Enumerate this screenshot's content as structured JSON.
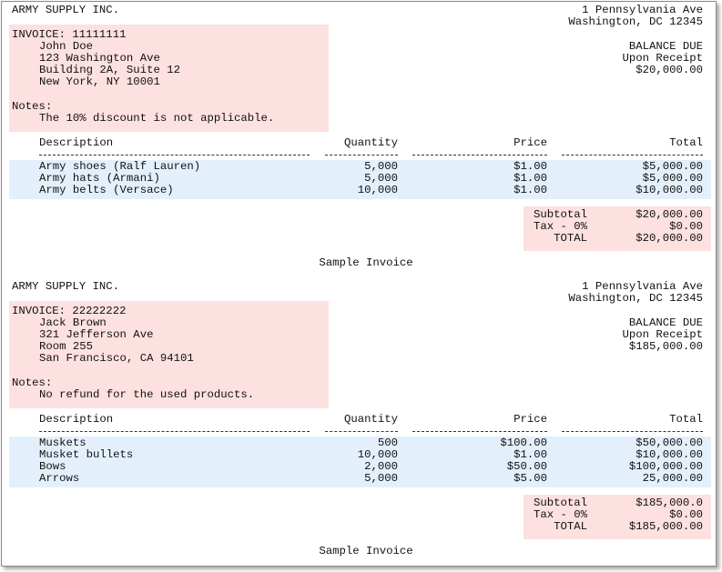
{
  "invoices": [
    {
      "company": "ARMY SUPPLY INC.",
      "address": [
        "1 Pennsylvania Ave",
        "Washington, DC 12345"
      ],
      "invoice_label": "INVOICE: 11111111",
      "customer": [
        "John Doe",
        "123 Washington Ave",
        "Building 2A, Suite 12",
        "New York, NY 10001"
      ],
      "notes_label": "Notes:",
      "note": "The 10% discount is not applicable.",
      "balance": [
        "BALANCE DUE",
        "Upon Receipt",
        "$20,000.00"
      ],
      "columns": [
        "Description",
        "Quantity",
        "Price",
        "Total"
      ],
      "items": [
        [
          "Army shoes (Ralf Lauren)",
          "5,000",
          "$1.00",
          "$5,000.00"
        ],
        [
          "Army hats (Armani)",
          "5,000",
          "$1.00",
          "$5,000.00"
        ],
        [
          "Army belts (Versace)",
          "10,000",
          "$1.00",
          "$10,000.00"
        ]
      ],
      "totals": [
        [
          "Subtotal",
          "$20,000.00"
        ],
        [
          "Tax - 0%",
          "$0.00"
        ],
        [
          "TOTAL",
          "$20,000.00"
        ]
      ],
      "footer": "Sample Invoice"
    },
    {
      "company": "ARMY SUPPLY INC.",
      "address": [
        "1 Pennsylvania Ave",
        "Washington, DC 12345"
      ],
      "invoice_label": "INVOICE: 22222222",
      "customer": [
        "Jack Brown",
        "321 Jefferson Ave",
        "Room 255",
        "San Francisco, CA 94101"
      ],
      "notes_label": "Notes:",
      "note": "No refund for the used products.",
      "balance": [
        "BALANCE DUE",
        "Upon Receipt",
        "$185,000.00"
      ],
      "columns": [
        "Description",
        "Quantity",
        "Price",
        "Total"
      ],
      "items": [
        [
          "Muskets",
          "500",
          "$100.00",
          "$50,000.00"
        ],
        [
          "Musket bullets",
          "10,000",
          "$1.00",
          "$10,000.00"
        ],
        [
          "Bows",
          "2,000",
          "$50.00",
          "$100,000.00"
        ],
        [
          "Arrows",
          "5,000",
          "$5.00",
          "25,000.00"
        ]
      ],
      "totals": [
        [
          "Subtotal",
          "$185,000.0"
        ],
        [
          "Tax - 0%",
          "$0.00"
        ],
        [
          "TOTAL",
          "$185,000.00"
        ]
      ],
      "footer": "Sample Invoice"
    }
  ]
}
